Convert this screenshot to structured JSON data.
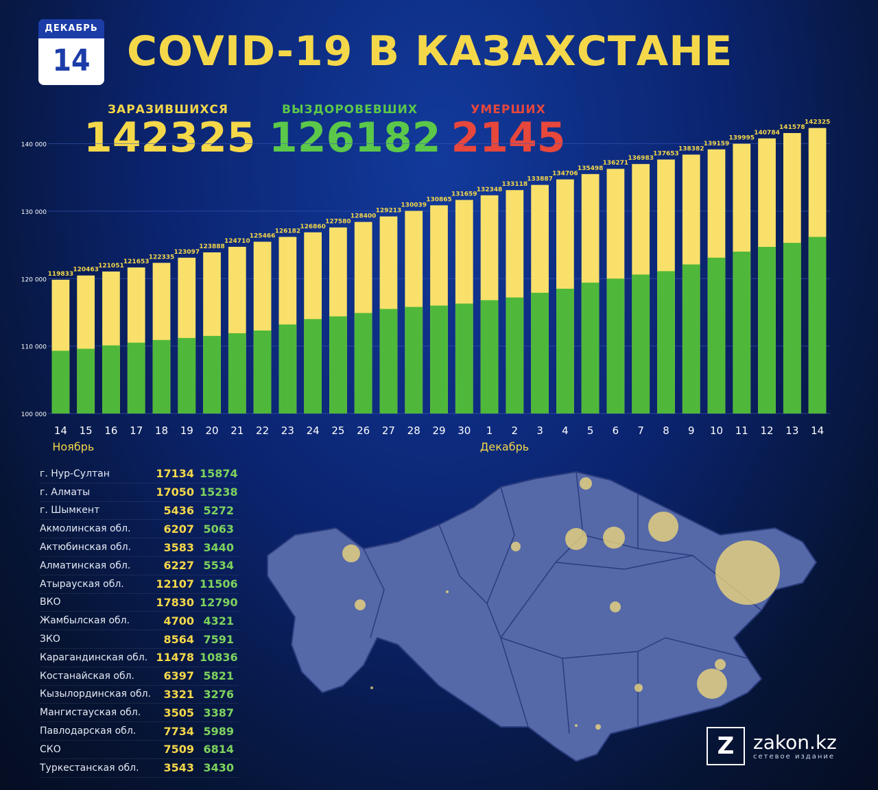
{
  "date": {
    "month": "ДЕКАБРЬ",
    "day": "14"
  },
  "title": "COVID-19 В КАЗАХСТАНЕ",
  "stats": {
    "infected": {
      "label": "ЗАРАЗИВШИХСЯ",
      "value": "142325"
    },
    "recovered": {
      "label": "ВЫЗДОРОВЕВШИХ",
      "value": "126182"
    },
    "deaths": {
      "label": "УМЕРШИХ",
      "value": "2145"
    }
  },
  "colors": {
    "infected": "#f9e06a",
    "recovered": "#4fb83a",
    "deaths": "#e8473c",
    "gridline": "#3a5bbf"
  },
  "chart_data": {
    "type": "bar",
    "categories": [
      "14",
      "15",
      "16",
      "17",
      "18",
      "19",
      "20",
      "21",
      "22",
      "23",
      "24",
      "25",
      "26",
      "27",
      "28",
      "29",
      "30",
      "1",
      "2",
      "3",
      "4",
      "5",
      "6",
      "7",
      "8",
      "9",
      "10",
      "11",
      "12",
      "13",
      "14"
    ],
    "month_labels": [
      {
        "label": "Ноябрь",
        "at_index": 0
      },
      {
        "label": "Декабрь",
        "at_index": 17
      }
    ],
    "series": [
      {
        "values": [
          119833,
          120463,
          121051,
          121653,
          122335,
          123097,
          123888,
          124710,
          125466,
          126182,
          126860,
          127580,
          128400,
          129213,
          130039,
          130865,
          131659,
          132348,
          133118,
          133887,
          134706,
          135498,
          136271,
          136983,
          137653,
          138382,
          139159,
          139995,
          140784,
          141578,
          142325
        ]
      },
      {
        "values": [
          109300,
          109600,
          110100,
          110500,
          110900,
          111200,
          111500,
          111900,
          112300,
          113200,
          114000,
          114400,
          114900,
          115500,
          115800,
          116000,
          116300,
          116800,
          117200,
          117900,
          118500,
          119400,
          120000,
          120600,
          121100,
          122100,
          123100,
          124000,
          124700,
          125300,
          126182
        ]
      }
    ],
    "yticks": [
      "100 000",
      "110 000",
      "120 000",
      "130 000",
      "140 000"
    ],
    "ylim": [
      100000,
      143000
    ],
    "grid": true
  },
  "regions": [
    {
      "name": "г. Нур-Султан",
      "infected": "17134",
      "recovered": "15874"
    },
    {
      "name": "г. Алматы",
      "infected": "17050",
      "recovered": "15238"
    },
    {
      "name": "г. Шымкент",
      "infected": "5436",
      "recovered": "5272"
    },
    {
      "name": "Акмолинская обл.",
      "infected": "6207",
      "recovered": "5063"
    },
    {
      "name": "Актюбинская обл.",
      "infected": "3583",
      "recovered": "3440"
    },
    {
      "name": "Алматинская обл.",
      "infected": "6227",
      "recovered": "5534"
    },
    {
      "name": "Атырауская обл.",
      "infected": "12107",
      "recovered": "11506"
    },
    {
      "name": "ВКО",
      "infected": "17830",
      "recovered": "12790"
    },
    {
      "name": "Жамбылская обл.",
      "infected": "4700",
      "recovered": "4321"
    },
    {
      "name": "ЗКО",
      "infected": "8564",
      "recovered": "7591"
    },
    {
      "name": "Карагандинская обл.",
      "infected": "11478",
      "recovered": "10836"
    },
    {
      "name": "Костанайская обл.",
      "infected": "6397",
      "recovered": "5821"
    },
    {
      "name": "Кызылординская обл.",
      "infected": "3321",
      "recovered": "3276"
    },
    {
      "name": "Мангистауская обл.",
      "infected": "3505",
      "recovered": "3387"
    },
    {
      "name": "Павлодарская обл.",
      "infected": "7734",
      "recovered": "5989"
    },
    {
      "name": "СКО",
      "infected": "7509",
      "recovered": "6814"
    },
    {
      "name": "Туркестанская обл.",
      "infected": "3543",
      "recovered": "3430"
    }
  ],
  "brand": {
    "logo": "Z",
    "name": "zakon.kz",
    "subtitle": "сетевое издание"
  }
}
